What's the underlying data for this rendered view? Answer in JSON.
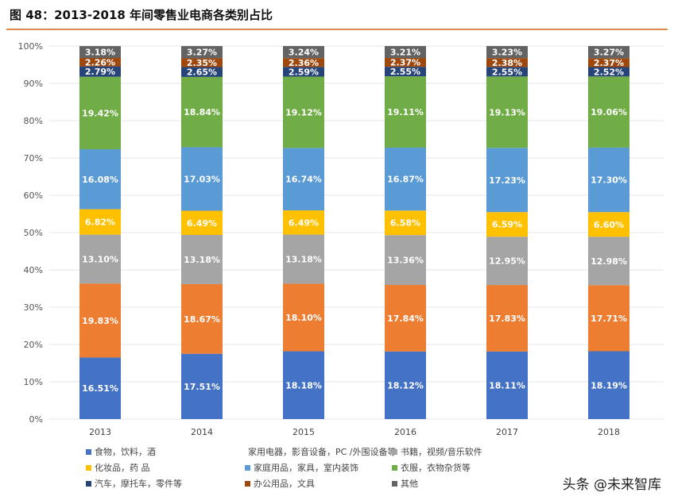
{
  "title": "图 48：2013-2018 年间零售业电商各类别占比",
  "watermark": "头条 @未来智库",
  "chart_data": {
    "type": "bar",
    "stacked": true,
    "categories": [
      "2013",
      "2014",
      "2015",
      "2016",
      "2017",
      "2018"
    ],
    "ylim": [
      0,
      100
    ],
    "yticks": [
      "0%",
      "10%",
      "20%",
      "30%",
      "40%",
      "50%",
      "60%",
      "70%",
      "80%",
      "90%",
      "100%"
    ],
    "grid": true,
    "legend": "bottom",
    "series": [
      {
        "name": "食物，饮料，酒",
        "color": "#4472C4",
        "values": [
          16.51,
          17.51,
          18.18,
          18.12,
          18.11,
          18.19
        ]
      },
      {
        "name": "家用电器，影音设备，PC /外围设备等",
        "color": "#ED7D31",
        "values": [
          19.83,
          18.67,
          18.1,
          17.84,
          17.83,
          17.71
        ]
      },
      {
        "name": "书籍，视频/音乐软件",
        "color": "#A5A5A5",
        "values": [
          13.1,
          13.18,
          13.18,
          13.36,
          12.95,
          12.98
        ]
      },
      {
        "name": "化妆品，药 品",
        "color": "#FFC000",
        "values": [
          6.82,
          6.49,
          6.49,
          6.58,
          6.59,
          6.6
        ]
      },
      {
        "name": "家庭用品，家具，室内装饰",
        "color": "#5B9BD5",
        "values": [
          16.08,
          17.03,
          16.74,
          16.87,
          17.23,
          17.3
        ]
      },
      {
        "name": "衣服，衣物杂货等",
        "color": "#70AD47",
        "values": [
          19.42,
          18.84,
          19.12,
          19.11,
          19.13,
          19.06
        ]
      },
      {
        "name": "汽车，摩托车，零件等",
        "color": "#264478",
        "values": [
          2.79,
          2.65,
          2.59,
          2.55,
          2.55,
          2.52
        ]
      },
      {
        "name": "办公用品，文具",
        "color": "#9E480E",
        "values": [
          2.26,
          2.35,
          2.36,
          2.37,
          2.38,
          2.37
        ]
      },
      {
        "name": "其他",
        "color": "#636363",
        "values": [
          3.18,
          3.27,
          3.24,
          3.21,
          3.23,
          3.27
        ]
      }
    ]
  }
}
